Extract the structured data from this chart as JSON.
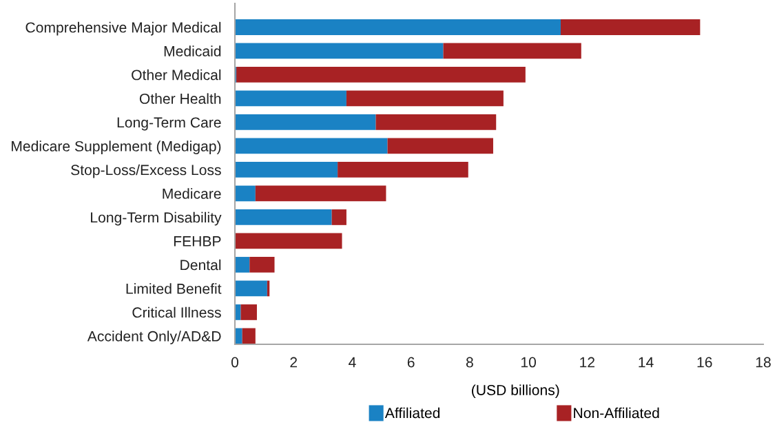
{
  "chart_data": {
    "type": "bar",
    "orientation": "horizontal",
    "stacked": true,
    "xlabel": "(USD billions)",
    "categories": [
      "Comprehensive Major Medical",
      "Medicaid",
      "Other Medical",
      "Other Health",
      "Long-Term Care",
      "Medicare Supplement (Medigap)",
      "Stop-Loss/Excess Loss",
      "Medicare",
      "Long-Term Disability",
      "FEHBP",
      "Dental",
      "Limited Benefit",
      "Critical Illness",
      "Accident Only/AD&D"
    ],
    "series": [
      {
        "name": "Affiliated",
        "color": "#1a82c4",
        "values": [
          11.1,
          7.1,
          0.05,
          3.8,
          4.8,
          5.2,
          3.5,
          0.7,
          3.3,
          0,
          0.5,
          1.1,
          0.2,
          0.25
        ]
      },
      {
        "name": "Non-Affiliated",
        "color": "#a82224",
        "values": [
          4.75,
          4.7,
          9.85,
          5.35,
          4.1,
          3.6,
          4.45,
          4.45,
          0.5,
          3.65,
          0.85,
          0.08,
          0.55,
          0.45
        ]
      }
    ],
    "xlim": [
      0,
      18
    ],
    "xticks": [
      0,
      2,
      4,
      6,
      8,
      10,
      12,
      14,
      16,
      18
    ],
    "legend": "bottom"
  }
}
